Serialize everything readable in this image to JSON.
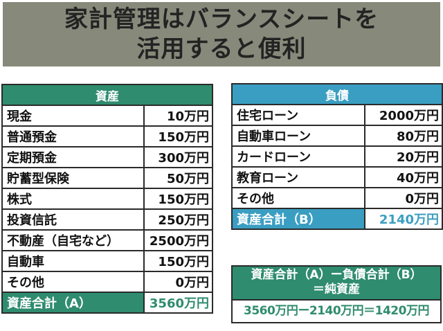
{
  "title": {
    "line1": "家計管理はバランスシートを",
    "line2": "活用すると便利"
  },
  "assets": {
    "header": "資産",
    "rows": [
      {
        "label": "現金",
        "value": "10万円"
      },
      {
        "label": "普通預金",
        "value": "150万円"
      },
      {
        "label": "定期預金",
        "value": "300万円"
      },
      {
        "label": "貯蓄型保険",
        "value": "50万円"
      },
      {
        "label": "株式",
        "value": "150万円"
      },
      {
        "label": "投資信託",
        "value": "250万円"
      },
      {
        "label": "不動産（自宅など）",
        "value": "2500万円"
      },
      {
        "label": "自動車",
        "value": "150万円"
      },
      {
        "label": "その他",
        "value": "0万円"
      }
    ],
    "total": {
      "label": "資産合計（A）",
      "value": "3560万円"
    }
  },
  "liabilities": {
    "header": "負債",
    "rows": [
      {
        "label": "住宅ローン",
        "value": "2000万円"
      },
      {
        "label": "自動車ローン",
        "value": "80万円"
      },
      {
        "label": "カードローン",
        "value": "20万円"
      },
      {
        "label": "教育ローン",
        "value": "40万円"
      },
      {
        "label": "その他",
        "value": "0万円"
      }
    ],
    "total": {
      "label": "資産合計（B）",
      "value": "2140万円"
    }
  },
  "formula": {
    "line1": "資産合計（A）ー負債合計（B）",
    "line2": "＝純資産",
    "body": "3560万円ー2140万円＝1420万円"
  }
}
